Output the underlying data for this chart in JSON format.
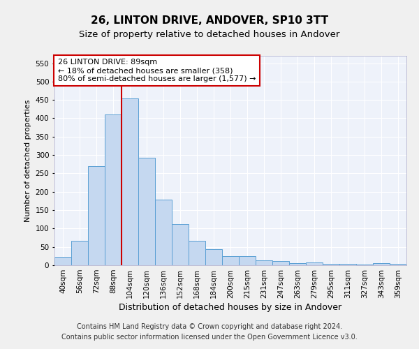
{
  "title1": "26, LINTON DRIVE, ANDOVER, SP10 3TT",
  "title2": "Size of property relative to detached houses in Andover",
  "xlabel": "Distribution of detached houses by size in Andover",
  "ylabel": "Number of detached properties",
  "footer1": "Contains HM Land Registry data © Crown copyright and database right 2024.",
  "footer2": "Contains public sector information licensed under the Open Government Licence v3.0.",
  "categories": [
    "40sqm",
    "56sqm",
    "72sqm",
    "88sqm",
    "104sqm",
    "120sqm",
    "136sqm",
    "152sqm",
    "168sqm",
    "184sqm",
    "200sqm",
    "215sqm",
    "231sqm",
    "247sqm",
    "263sqm",
    "279sqm",
    "295sqm",
    "311sqm",
    "327sqm",
    "343sqm",
    "359sqm"
  ],
  "values": [
    22,
    66,
    270,
    410,
    455,
    293,
    179,
    113,
    67,
    43,
    24,
    24,
    14,
    11,
    6,
    7,
    4,
    3,
    2,
    5,
    3
  ],
  "bar_color": "#c5d8f0",
  "bar_edge_color": "#5a9fd4",
  "vline_x": 3.5,
  "vline_color": "#cc0000",
  "annotation_text": "26 LINTON DRIVE: 89sqm\n← 18% of detached houses are smaller (358)\n80% of semi-detached houses are larger (1,577) →",
  "annotation_box_color": "#ffffff",
  "annotation_box_edge": "#cc0000",
  "ylim": [
    0,
    570
  ],
  "yticks": [
    0,
    50,
    100,
    150,
    200,
    250,
    300,
    350,
    400,
    450,
    500,
    550
  ],
  "background_color": "#eef2fa",
  "grid_color": "#ffffff",
  "title1_fontsize": 11,
  "title2_fontsize": 9.5,
  "xlabel_fontsize": 9,
  "ylabel_fontsize": 8,
  "tick_fontsize": 7.5,
  "ann_fontsize": 8,
  "footer_fontsize": 7
}
